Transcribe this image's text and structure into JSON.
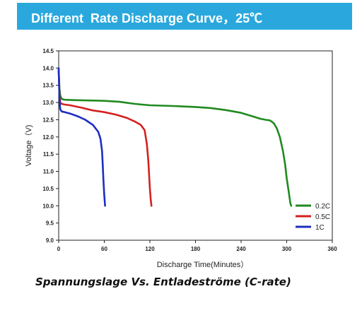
{
  "banner": {
    "title": "Different  Rate Discharge Curve，25℃",
    "background": "#2aa8dd"
  },
  "caption": "Spannungslage Vs. Entladeströme (C-rate)",
  "chart_data": {
    "type": "line",
    "title": "Different  Rate Discharge Curve，25℃",
    "xlabel": "Discharge Time(Minutes）",
    "ylabel": "Voltage（V)",
    "xlim": [
      0,
      360
    ],
    "ylim": [
      9.0,
      14.5
    ],
    "xticks": [
      "0",
      "60",
      "120",
      "180",
      "240",
      "300",
      "360"
    ],
    "yticks": [
      "9.0",
      "9.5",
      "10.0",
      "10.5",
      "11.0",
      "11.5",
      "12.0",
      "12.5",
      "13.0",
      "13.5",
      "14.0",
      "14.5"
    ],
    "grid": false,
    "legend_position": "bottom-right",
    "series": [
      {
        "name": "0.2C",
        "color": "#1f8a1f",
        "x": [
          0,
          1,
          2,
          4,
          8,
          20,
          40,
          60,
          80,
          100,
          120,
          150,
          180,
          200,
          220,
          240,
          255,
          265,
          272,
          278,
          283,
          287,
          291,
          295,
          298,
          300,
          302,
          304,
          305,
          306
        ],
        "y": [
          13.9,
          13.4,
          13.2,
          13.1,
          13.08,
          13.07,
          13.06,
          13.05,
          13.02,
          12.96,
          12.92,
          12.9,
          12.87,
          12.84,
          12.78,
          12.7,
          12.6,
          12.53,
          12.5,
          12.48,
          12.4,
          12.25,
          12.0,
          11.6,
          11.2,
          10.8,
          10.5,
          10.2,
          10.05,
          10.0
        ]
      },
      {
        "name": "0.5C",
        "color": "#d42020",
        "x": [
          0,
          1,
          2,
          4,
          8,
          15,
          30,
          45,
          60,
          75,
          90,
          100,
          108,
          113,
          116,
          118,
          119,
          120,
          121,
          122
        ],
        "y": [
          13.95,
          13.2,
          13.0,
          12.96,
          12.94,
          12.92,
          12.85,
          12.77,
          12.72,
          12.65,
          12.55,
          12.45,
          12.35,
          12.2,
          11.8,
          11.3,
          10.9,
          10.5,
          10.2,
          10.0
        ]
      },
      {
        "name": "1C",
        "color": "#1c2ec0",
        "x": [
          0,
          1,
          2,
          4,
          8,
          15,
          25,
          35,
          45,
          52,
          55,
          57,
          58,
          59,
          60,
          61
        ],
        "y": [
          14.0,
          13.1,
          12.8,
          12.74,
          12.72,
          12.68,
          12.6,
          12.5,
          12.35,
          12.15,
          11.95,
          11.6,
          11.2,
          10.7,
          10.3,
          10.0
        ]
      }
    ]
  }
}
